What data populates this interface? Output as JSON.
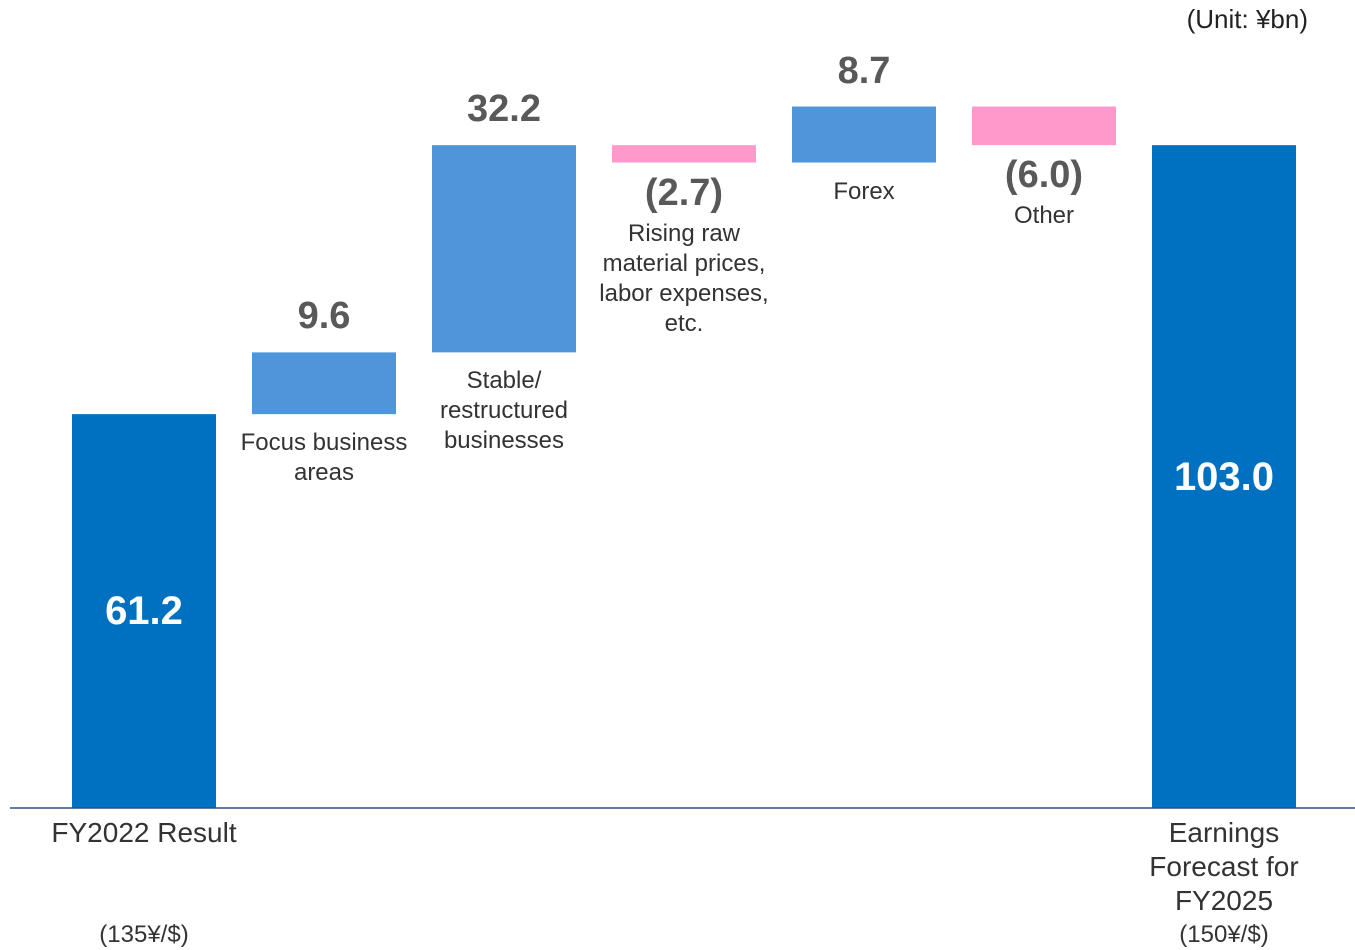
{
  "chart_data": {
    "type": "waterfall",
    "subtitle": "(Unit: ¥bn)",
    "categories": [
      "FY2022 Result",
      "Focus business areas",
      "Stable/ restructured businesses",
      "Rising raw material prices, labor expenses, etc.",
      "Forex",
      "Other",
      "Earnings Forecast for FY2025"
    ],
    "category_notes": [
      "(135¥/$)",
      null,
      null,
      null,
      null,
      null,
      "(150¥/$)"
    ],
    "measure": [
      "total",
      "relative",
      "relative",
      "relative",
      "relative",
      "relative",
      "total"
    ],
    "values": [
      61.2,
      9.6,
      32.2,
      -2.7,
      8.7,
      -6.0,
      103.0
    ],
    "value_labels": [
      "61.2",
      "9.6",
      "32.2",
      "(2.7)",
      "8.7",
      "(6.0)",
      "103.0"
    ],
    "colors": {
      "total": "#0070c0",
      "increase": "#4f95d9",
      "decrease": "#ff99cc"
    },
    "ylim": [
      0,
      124
    ]
  }
}
